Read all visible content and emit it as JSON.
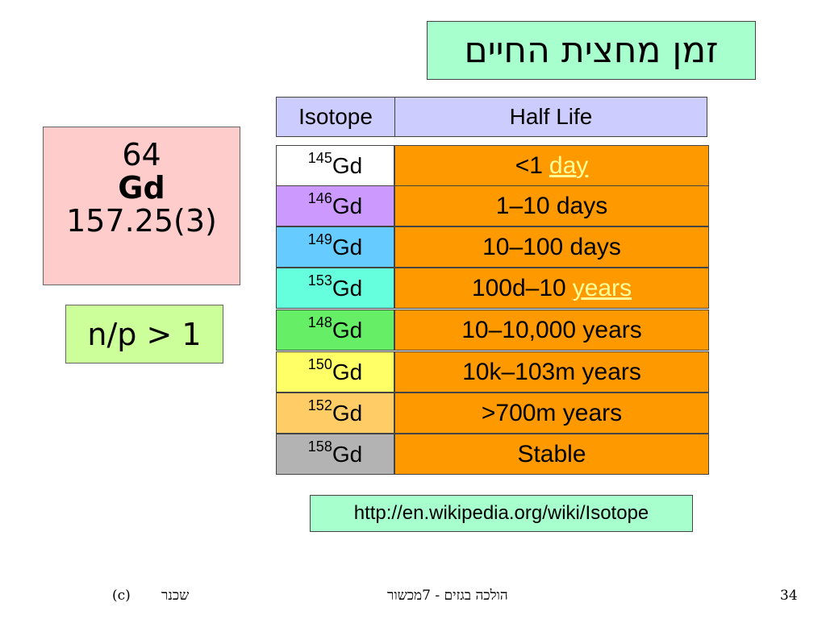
{
  "title": "זמן מחצית החיים",
  "element": {
    "atomic_number": "64",
    "symbol": "Gd",
    "mass": "157.25(3)"
  },
  "ratio": "n/p > 1",
  "table": {
    "headers": {
      "isotope": "Isotope",
      "half_life": "Half Life"
    },
    "rows": [
      {
        "mass": "145",
        "symbol": "Gd",
        "half_life": "<1",
        "link": "day",
        "color": "#ffffff"
      },
      {
        "mass": "146",
        "symbol": "Gd",
        "half_life": "1–10 days",
        "link": "",
        "color": "#cc99ff"
      },
      {
        "mass": "149",
        "symbol": "Gd",
        "half_life": "10–100 days",
        "link": "",
        "color": "#66ccff"
      },
      {
        "mass": "153",
        "symbol": "Gd",
        "half_life": "100d–10",
        "link": "years",
        "color": "#66ffdd"
      },
      {
        "mass": "148",
        "symbol": "Gd",
        "half_life": "10–10,000 years",
        "link": "",
        "color": "#66ee66"
      },
      {
        "mass": "150",
        "symbol": "Gd",
        "half_life": "10k–103m years",
        "link": "",
        "color": "#ffff66"
      },
      {
        "mass": "152",
        "symbol": "Gd",
        "half_life": ">700m years",
        "link": "",
        "color": "#ffcc66"
      },
      {
        "mass": "158",
        "symbol": "Gd",
        "half_life": "Stable",
        "link": "",
        "color": "#b3b3b3"
      }
    ]
  },
  "source_url": "http://en.wikipedia.org/wiki/Isotope",
  "footer": {
    "copyright": "(c)",
    "author": "שכנר",
    "center": "הולכה בגזים - 7מכשור",
    "page": "34"
  }
}
